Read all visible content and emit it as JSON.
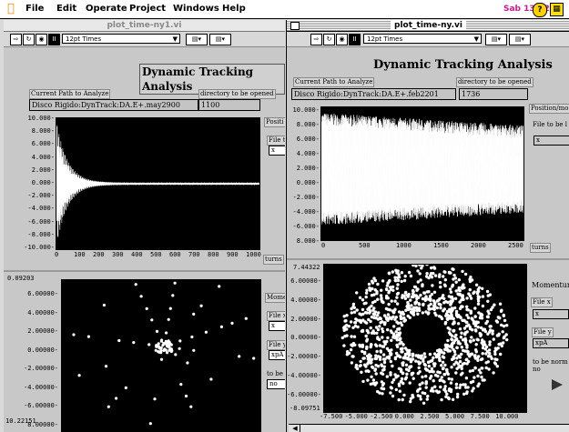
{
  "menubar": {
    "items": [
      "File",
      "Edit",
      "Operate",
      "Project",
      "Windows",
      "Help"
    ],
    "clock": "Sab 13:52"
  },
  "left_window": {
    "title": "plot_time-ny1.vi",
    "font_select": "12pt Times",
    "heading": "Dynamic Tracking Analysis",
    "path_label": "Current Path to Analyze",
    "path_value": "Disco Rigido:DynTrack:DA.E+.may2900",
    "dir_label": "directory to be opened",
    "dir_value": "1100",
    "side_label_1": "Positi",
    "side_label_2": "File t",
    "side_box_1": "x",
    "turns_label": "turns",
    "mom_label": "Mome",
    "file_x_label": "File x",
    "file_x_value": "x",
    "file_y_label": "File y",
    "file_y_value": "xpA",
    "to_be_label": "to be",
    "to_be_value": "no",
    "top_plot": {
      "y_ticks": [
        "10.000-",
        "8.000-",
        "6.000-",
        "4.000-",
        "2.000-",
        "0.000-",
        "-2.000-",
        "-4.000-",
        "-6.000-",
        "-8.000-",
        "-10.000-"
      ],
      "x_ticks": [
        "0",
        "100",
        "200",
        "300",
        "400",
        "500",
        "600",
        "700",
        "800",
        "900",
        "1000"
      ]
    },
    "bottom_plot": {
      "y_ticks": [
        "6.00000-",
        "4.00000-",
        "2.00000-",
        "0.00000-",
        "-2.00000-",
        "-4.00000-",
        "-6.00000-",
        "8.00000-"
      ],
      "y_top": "0.09203",
      "y_bottom": "10.22151"
    }
  },
  "right_window": {
    "title": "plot_time-ny.vi",
    "font_select": "12pt Times",
    "heading": "Dynamic Tracking Analysis",
    "path_label": "Current Path to Analyze",
    "path_value": "Disco Rigido:DynTrack:DA.E+.feb2201",
    "dir_label": "directory to be opened",
    "dir_value": "1736",
    "pos_label": "Position/mo",
    "file_label": "File to be l",
    "file_value": "x",
    "turns_label": "turns",
    "mom_label": "Momentum",
    "file_x_label": "File x",
    "file_x_value": "x",
    "file_y_label": "File y",
    "file_y_value": "xpA",
    "to_be_label": "to be norm",
    "to_be_value": "no",
    "top_plot": {
      "y_ticks": [
        "10.000-",
        "8.000-",
        "6.000-",
        "4.000-",
        "2.000-",
        "0.000-",
        "-2.000-",
        "-4.000-",
        "-6.000-",
        "8.000-"
      ],
      "x_ticks": [
        "0",
        "500",
        "1000",
        "1500",
        "2000",
        "2500"
      ]
    },
    "bottom_plot": {
      "y_top": "7.44322",
      "y_ticks": [
        "6.00000-",
        "4.00000-",
        "2.00000-",
        "0.00000-",
        "-2.00000-",
        "-4.00000-",
        "-6.00000-"
      ],
      "y_bottom": "-8.09751",
      "x_ticks": [
        "-7.500",
        "-5.000",
        "-2.500",
        "0.000",
        "2.500",
        "5.000",
        "7.500",
        "10.000"
      ]
    }
  },
  "colors": {
    "clock": "#d01890",
    "apple": "#f28c00",
    "plot_bg": "#000000",
    "trace": "#ffffff"
  },
  "icons": [
    "apple-icon",
    "help-icon",
    "app-icon",
    "run-icon",
    "run-continuous-icon",
    "stop-icon",
    "pause-icon"
  ]
}
